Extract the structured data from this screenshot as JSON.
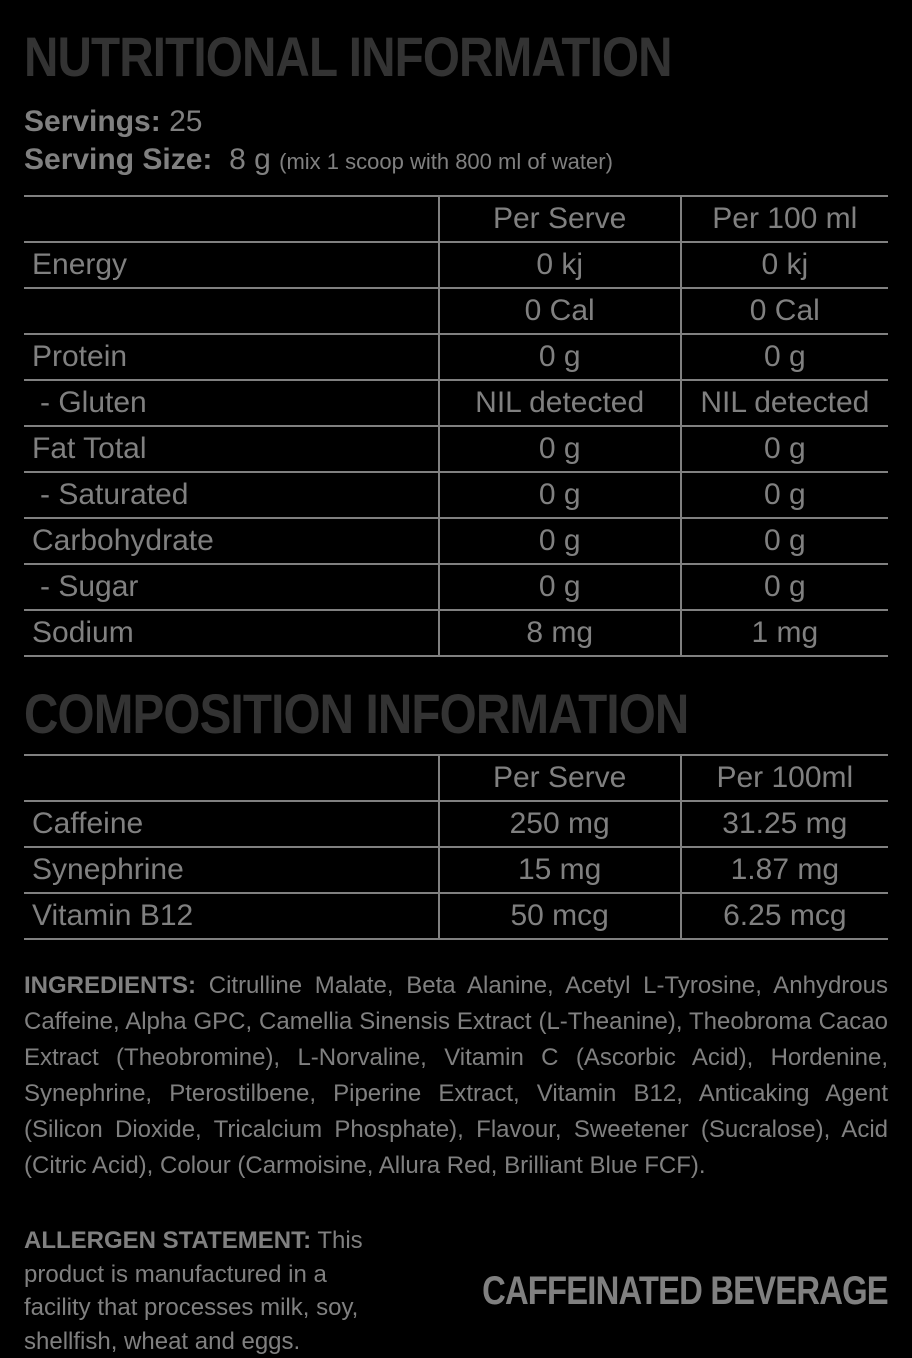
{
  "title_nutritional": "NUTRITIONAL INFORMATION",
  "servings": {
    "label": "Servings:",
    "value": "25"
  },
  "serving_size": {
    "label": "Serving Size:",
    "value": "8 g",
    "note": "(mix 1 scoop with 800 ml of water)"
  },
  "nutritional_table": {
    "headers": [
      "",
      "Per Serve",
      "Per 100 ml"
    ],
    "rows": [
      {
        "name": "Energy",
        "per_serve": "0 kj",
        "per_100": "0 kj",
        "sub": false
      },
      {
        "name": "",
        "per_serve": "0 Cal",
        "per_100": "0 Cal",
        "sub": false
      },
      {
        "name": "Protein",
        "per_serve": "0 g",
        "per_100": "0 g",
        "sub": false
      },
      {
        "name": "- Gluten",
        "per_serve": "NIL detected",
        "per_100": "NIL detected",
        "sub": true
      },
      {
        "name": "Fat Total",
        "per_serve": "0 g",
        "per_100": "0 g",
        "sub": false
      },
      {
        "name": "- Saturated",
        "per_serve": "0 g",
        "per_100": "0 g",
        "sub": true
      },
      {
        "name": "Carbohydrate",
        "per_serve": "0 g",
        "per_100": "0 g",
        "sub": false
      },
      {
        "name": "- Sugar",
        "per_serve": "0 g",
        "per_100": "0 g",
        "sub": true
      },
      {
        "name": "Sodium",
        "per_serve": "8 mg",
        "per_100": "1 mg",
        "sub": false
      }
    ]
  },
  "title_composition": "COMPOSITION INFORMATION",
  "composition_table": {
    "headers": [
      "",
      "Per Serve",
      "Per 100ml"
    ],
    "rows": [
      {
        "name": "Caffeine",
        "per_serve": "250 mg",
        "per_100": "31.25 mg"
      },
      {
        "name": "Synephrine",
        "per_serve": "15 mg",
        "per_100": "1.87 mg"
      },
      {
        "name": "Vitamin B12",
        "per_serve": "50 mcg",
        "per_100": "6.25 mcg"
      }
    ]
  },
  "ingredients": {
    "label": "INGREDIENTS:",
    "text": "Citrulline Malate, Beta Alanine, Acetyl L-Tyrosine, Anhydrous Caffeine, Alpha GPC, Camellia Sinensis Extract (L-Theanine), Theobroma Cacao Extract (Theobromine),  L-Norvaline, Vitamin C (Ascorbic Acid), Hordenine, Synephrine, Pterostilbene, Piperine Extract, Vitamin B12, Anticaking Agent (Silicon Dioxide, Tricalcium Phosphate), Flavour, Sweetener (Sucralose), Acid (Citric Acid), Colour (Carmoisine, Allura Red, Brilliant Blue FCF)."
  },
  "allergen": {
    "label": "ALLERGEN STATEMENT:",
    "text": "This product is manufactured in a facility that processes milk, soy, shellfish, wheat and eggs."
  },
  "beverage_badge": "CAFFEINATED BEVERAGE",
  "colors": {
    "background": "#000000",
    "text": "#808080",
    "heading": "#333333",
    "border": "#808080"
  }
}
